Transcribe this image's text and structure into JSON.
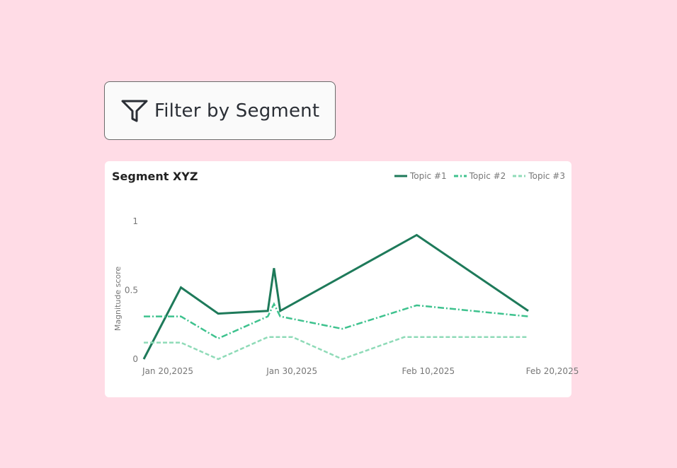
{
  "filter": {
    "label": "Filter by Segment",
    "icon": "filter-funnel-icon"
  },
  "card": {
    "title": "Segment XYZ"
  },
  "colors": {
    "background": "#ffdce6",
    "topic1": "#1e7a5a",
    "topic2": "#3ec28e",
    "topic3": "#8fdbb8"
  },
  "chart_data": {
    "type": "line",
    "title": "Segment XYZ",
    "xlabel": "",
    "ylabel": "Magnitude score",
    "x_range": [
      "2025-01-20",
      "2025-02-20"
    ],
    "ylim": [
      0,
      1
    ],
    "y_ticks": [
      0,
      0.5,
      1
    ],
    "x_ticks": [
      {
        "label": "Jan 20,2025",
        "date": "2025-01-20"
      },
      {
        "label": "Jan 30,2025",
        "date": "2025-01-30"
      },
      {
        "label": "Feb 10,2025",
        "date": "2025-02-10"
      },
      {
        "label": "Feb 20,2025",
        "date": "2025-02-20"
      }
    ],
    "grid": false,
    "legend_position": "top-right",
    "series": [
      {
        "name": "Topic #1",
        "style": "solid",
        "points": [
          {
            "x": "2025-01-20",
            "y": 0.0
          },
          {
            "x": "2025-01-23",
            "y": 0.52
          },
          {
            "x": "2025-01-26",
            "y": 0.33
          },
          {
            "x": "2025-01-30",
            "y": 0.35
          },
          {
            "x": "2025-01-30T12:00",
            "y": 0.66
          },
          {
            "x": "2025-01-31",
            "y": 0.35
          },
          {
            "x": "2025-02-11",
            "y": 0.9
          },
          {
            "x": "2025-02-20",
            "y": 0.35
          }
        ]
      },
      {
        "name": "Topic #2",
        "style": "dash-dot",
        "points": [
          {
            "x": "2025-01-20",
            "y": 0.31
          },
          {
            "x": "2025-01-23",
            "y": 0.31
          },
          {
            "x": "2025-01-26",
            "y": 0.15
          },
          {
            "x": "2025-01-30",
            "y": 0.31
          },
          {
            "x": "2025-01-30T12:00",
            "y": 0.4
          },
          {
            "x": "2025-01-31",
            "y": 0.31
          },
          {
            "x": "2025-02-05",
            "y": 0.22
          },
          {
            "x": "2025-02-11",
            "y": 0.39
          },
          {
            "x": "2025-02-20",
            "y": 0.31
          }
        ]
      },
      {
        "name": "Topic #3",
        "style": "dashed",
        "points": [
          {
            "x": "2025-01-20",
            "y": 0.12
          },
          {
            "x": "2025-01-23",
            "y": 0.12
          },
          {
            "x": "2025-01-26",
            "y": 0.0
          },
          {
            "x": "2025-01-30",
            "y": 0.16
          },
          {
            "x": "2025-02-01",
            "y": 0.16
          },
          {
            "x": "2025-02-05",
            "y": 0.0
          },
          {
            "x": "2025-02-10",
            "y": 0.16
          },
          {
            "x": "2025-02-20",
            "y": 0.16
          }
        ]
      }
    ]
  }
}
